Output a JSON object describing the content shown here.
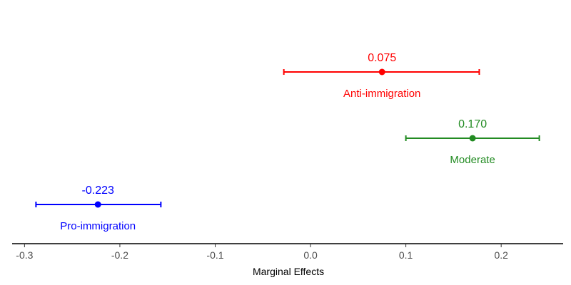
{
  "chart_data": {
    "type": "scatter",
    "subtype": "point-with-error-bars",
    "title": "",
    "xlabel": "Marginal Effects",
    "ylabel": "",
    "xlim": [
      -0.313,
      0.265
    ],
    "x_ticks": [
      -0.3,
      -0.2,
      -0.1,
      0.0,
      0.1,
      0.2
    ],
    "x_tick_labels": [
      "-0.3",
      "-0.2",
      "-0.1",
      "0.0",
      "0.1",
      "0.2"
    ],
    "grid": false,
    "legend": "none",
    "series": [
      {
        "name": "Anti-immigration",
        "estimate": 0.075,
        "estimate_label": "0.075",
        "ci_low": -0.028,
        "ci_high": 0.177,
        "color": "#ff0000"
      },
      {
        "name": "Moderate",
        "estimate": 0.17,
        "estimate_label": "0.170",
        "ci_low": 0.1,
        "ci_high": 0.24,
        "color": "#228b22"
      },
      {
        "name": "Pro-immigration",
        "estimate": -0.223,
        "estimate_label": "-0.223",
        "ci_low": -0.288,
        "ci_high": -0.157,
        "color": "#0000ff"
      }
    ]
  }
}
